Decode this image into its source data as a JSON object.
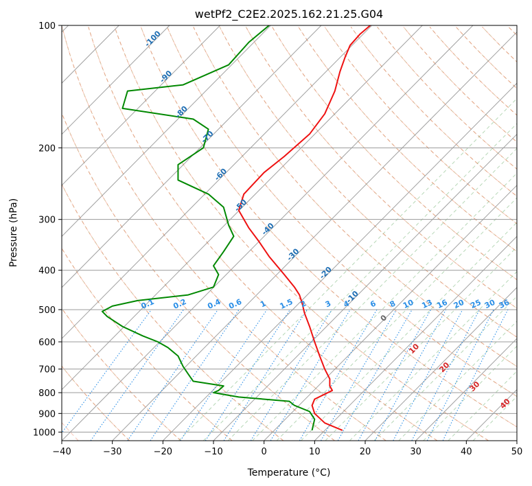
{
  "chart_data": {
    "type": "line",
    "title": "wetPf2_C2E2.2025.162.21.25.G04",
    "xlabel": "Temperature (°C)",
    "ylabel": "Pressure (hPa)",
    "xlim": [
      -40,
      50
    ],
    "ylim": [
      1050,
      100
    ],
    "y_scale": "log",
    "x_ticks": [
      -40,
      -30,
      -20,
      -10,
      0,
      10,
      20,
      30,
      40,
      50
    ],
    "y_ticks": [
      100,
      200,
      300,
      400,
      500,
      600,
      700,
      800,
      900,
      1000
    ],
    "grid": true,
    "series": [
      {
        "color": "#ee1111",
        "points": [
          [
            15.5,
            990
          ],
          [
            12,
            950
          ],
          [
            10,
            900
          ],
          [
            9.5,
            860
          ],
          [
            10,
            830
          ],
          [
            13.5,
            790
          ],
          [
            13,
            770
          ],
          [
            13,
            740
          ],
          [
            12,
            700
          ],
          [
            11,
            650
          ],
          [
            10,
            600
          ],
          [
            9,
            550
          ],
          [
            8,
            510
          ],
          [
            7.5,
            480
          ],
          [
            7,
            460
          ],
          [
            6,
            440
          ],
          [
            4,
            410
          ],
          [
            1,
            370
          ],
          [
            -1,
            340
          ],
          [
            -3,
            315
          ],
          [
            -5,
            285
          ],
          [
            -4,
            260
          ],
          [
            0,
            230
          ],
          [
            4,
            210
          ],
          [
            9,
            185
          ],
          [
            12,
            165
          ],
          [
            14,
            145
          ],
          [
            15,
            130
          ],
          [
            16,
            120
          ],
          [
            17,
            112
          ],
          [
            19,
            105
          ],
          [
            21,
            100
          ]
        ]
      },
      {
        "color": "#008800",
        "points": [
          [
            9.5,
            990
          ],
          [
            10,
            930
          ],
          [
            9,
            890
          ],
          [
            6,
            860
          ],
          [
            5,
            840
          ],
          [
            -5,
            820
          ],
          [
            -10,
            800
          ],
          [
            -9,
            790
          ],
          [
            -8,
            770
          ],
          [
            -14,
            750
          ],
          [
            -15,
            720
          ],
          [
            -16,
            690
          ],
          [
            -17,
            650
          ],
          [
            -19,
            620
          ],
          [
            -21,
            600
          ],
          [
            -24,
            580
          ],
          [
            -28,
            550
          ],
          [
            -31,
            520
          ],
          [
            -32,
            505
          ],
          [
            -30,
            490
          ],
          [
            -25,
            475
          ],
          [
            -15,
            460
          ],
          [
            -10,
            440
          ],
          [
            -9,
            410
          ],
          [
            -10,
            390
          ],
          [
            -8,
            360
          ],
          [
            -6,
            330
          ],
          [
            -7,
            310
          ],
          [
            -8,
            280
          ],
          [
            -11,
            260
          ],
          [
            -17,
            240
          ],
          [
            -17,
            220
          ],
          [
            -12,
            200
          ],
          [
            -11,
            180
          ],
          [
            -14,
            170
          ],
          [
            -28,
            160
          ],
          [
            -27,
            145
          ],
          [
            -16,
            140
          ],
          [
            -7,
            125
          ],
          [
            -3,
            110
          ],
          [
            1,
            100
          ]
        ]
      }
    ],
    "isotherm_labels": [
      -100,
      -90,
      -80,
      -70,
      -60,
      -50,
      -40,
      -30,
      -20,
      -10
    ],
    "mixing_ratio_labels": [
      "0.1",
      "0.2",
      "0.4",
      "0.6",
      "1",
      "1.5",
      "2",
      "3",
      "4",
      "6",
      "8",
      "10",
      "13",
      "16",
      "20",
      "25",
      "30",
      "36"
    ],
    "moist_adiabat_labels": [
      "0",
      "10",
      "20",
      "30",
      "40"
    ]
  }
}
